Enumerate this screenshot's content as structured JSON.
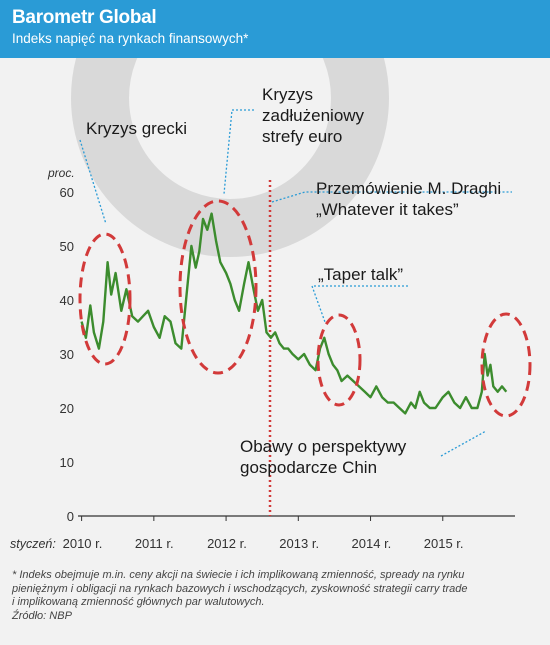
{
  "header": {
    "title": "Barometr Global",
    "subtitle": "Indeks napięć na rynkach finansowych*"
  },
  "chart_data": {
    "type": "line",
    "ylabel": "proc.",
    "ylim": [
      0,
      60
    ],
    "yticks": [
      0,
      10,
      20,
      30,
      40,
      50,
      60
    ],
    "x_prefix": "styczeń:",
    "x_ticks": [
      "2010 r.",
      "2011 r.",
      "2012 r.",
      "2013 r.",
      "2014 r.",
      "2015 r."
    ],
    "xlim": [
      2009.95,
      2016.0
    ],
    "grid": false,
    "color": "#3c8c2e",
    "series": [
      {
        "x": [
          2010.0,
          2010.06,
          2010.12,
          2010.17,
          2010.24,
          2010.3,
          2010.36,
          2010.41,
          2010.47,
          2010.55,
          2010.62,
          2010.7,
          2010.78,
          2010.85,
          2010.92,
          2011.0,
          2011.08,
          2011.15,
          2011.23,
          2011.3,
          2011.38,
          2011.46,
          2011.52,
          2011.58,
          2011.63,
          2011.68,
          2011.74,
          2011.8,
          2011.86,
          2011.92,
          2012.0,
          2012.06,
          2012.12,
          2012.18,
          2012.25,
          2012.31,
          2012.38,
          2012.44,
          2012.5,
          2012.56,
          2012.62,
          2012.68,
          2012.74,
          2012.8,
          2012.86,
          2012.92,
          2013.0,
          2013.08,
          2013.16,
          2013.24,
          2013.3,
          2013.36,
          2013.42,
          2013.48,
          2013.54,
          2013.6,
          2013.68,
          2013.76,
          2013.84,
          2013.92,
          2014.0,
          2014.08,
          2014.16,
          2014.24,
          2014.32,
          2014.4,
          2014.48,
          2014.56,
          2014.62,
          2014.68,
          2014.74,
          2014.82,
          2014.9,
          2015.0,
          2015.08,
          2015.16,
          2015.24,
          2015.32,
          2015.4,
          2015.48,
          2015.54,
          2015.58,
          2015.62,
          2015.66,
          2015.7,
          2015.76,
          2015.82,
          2015.88
        ],
        "y": [
          36,
          33,
          39,
          34,
          31,
          36,
          47,
          41,
          45,
          38,
          42,
          37,
          36,
          37,
          38,
          35,
          33,
          37,
          36,
          32,
          31,
          42,
          50,
          46,
          49,
          55,
          53,
          56,
          51,
          47,
          45,
          43,
          40,
          38,
          43,
          47,
          42,
          38,
          40,
          34,
          33,
          34,
          32,
          31,
          31,
          30,
          29,
          30,
          28,
          27,
          31,
          33,
          30,
          28,
          27,
          25,
          26,
          25,
          24,
          23,
          22,
          24,
          22,
          21,
          21,
          20,
          19,
          21,
          20,
          23,
          21,
          20,
          20,
          22,
          23,
          21,
          20,
          22,
          20,
          20,
          23,
          30,
          26,
          28,
          24,
          23,
          24,
          23
        ]
      }
    ],
    "annotations": [
      {
        "text": [
          "Kryzys grecki"
        ]
      },
      {
        "text": [
          "Kryzys",
          "zadłużeniowy",
          "strefy euro"
        ]
      },
      {
        "text": [
          "Przemówienie M. Draghi",
          "„Whatever it takes”"
        ]
      },
      {
        "text": [
          "„Taper talk”"
        ]
      },
      {
        "text": [
          "Obawy o perspektywy",
          "gospodarcze Chin"
        ]
      }
    ]
  },
  "footnote": {
    "lines": [
      "* Indeks obejmuje m.in. ceny akcji na świecie i ich implikowaną zmienność, spready na rynku",
      "pieniężnym i obligacji na rynkach bazowych i wschodzących, zyskowność strategii carry trade",
      "i implikowaną zmienność głównych par walutowych."
    ],
    "source": "Źródło: NBP"
  }
}
